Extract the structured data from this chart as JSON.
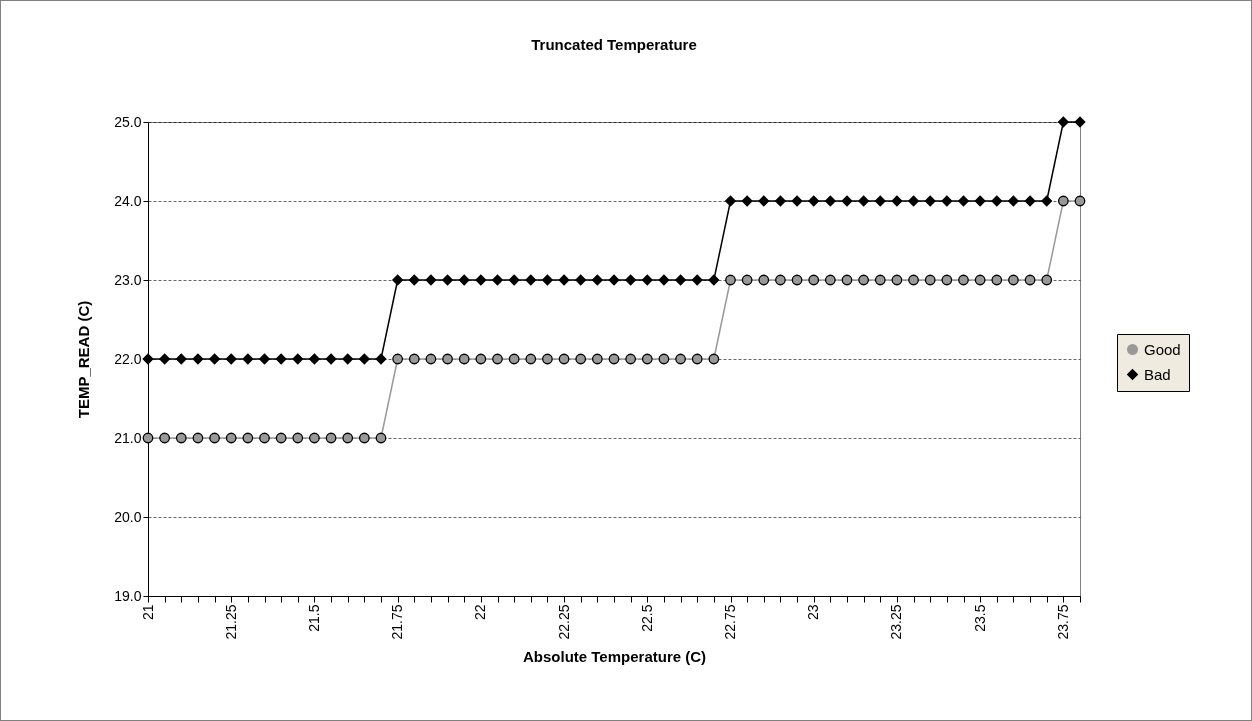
{
  "chart_data": {
    "type": "line",
    "title": "Truncated Temperature",
    "xlabel": "Absolute Temperature (C)",
    "ylabel": "TEMP_READ (C)",
    "categories": [
      "21",
      null,
      null,
      null,
      null,
      "21.25",
      null,
      null,
      null,
      null,
      "21.5",
      null,
      null,
      null,
      null,
      "21.75",
      null,
      null,
      null,
      null,
      "22",
      null,
      null,
      null,
      null,
      "22.25",
      null,
      null,
      null,
      null,
      "22.5",
      null,
      null,
      null,
      null,
      "22.75",
      null,
      null,
      null,
      null,
      "23",
      null,
      null,
      null,
      null,
      "23.25",
      null,
      null,
      null,
      null,
      "23.5",
      null,
      null,
      null,
      null,
      "23.75",
      null
    ],
    "series": [
      {
        "name": "Good",
        "color": "#999999",
        "marker": "circle",
        "values": [
          21,
          21,
          21,
          21,
          21,
          21,
          21,
          21,
          21,
          21,
          21,
          21,
          21,
          21,
          21,
          22,
          22,
          22,
          22,
          22,
          22,
          22,
          22,
          22,
          22,
          22,
          22,
          22,
          22,
          22,
          22,
          22,
          22,
          22,
          22,
          23,
          23,
          23,
          23,
          23,
          23,
          23,
          23,
          23,
          23,
          23,
          23,
          23,
          23,
          23,
          23,
          23,
          23,
          23,
          23,
          24,
          24
        ]
      },
      {
        "name": "Bad",
        "color": "#000000",
        "marker": "diamond",
        "values": [
          22,
          22,
          22,
          22,
          22,
          22,
          22,
          22,
          22,
          22,
          22,
          22,
          22,
          22,
          22,
          23,
          23,
          23,
          23,
          23,
          23,
          23,
          23,
          23,
          23,
          23,
          23,
          23,
          23,
          23,
          23,
          23,
          23,
          23,
          23,
          24,
          24,
          24,
          24,
          24,
          24,
          24,
          24,
          24,
          24,
          24,
          24,
          24,
          24,
          24,
          24,
          24,
          24,
          24,
          24,
          25,
          25
        ]
      }
    ],
    "ylim": [
      19,
      25
    ],
    "yticks": [
      {
        "value": 19,
        "label": "19.0"
      },
      {
        "value": 20,
        "label": "20.0"
      },
      {
        "value": 21,
        "label": "21.0"
      },
      {
        "value": 22,
        "label": "22.0"
      },
      {
        "value": 23,
        "label": "23.0"
      },
      {
        "value": 24,
        "label": "24.0"
      },
      {
        "value": 25,
        "label": "25.0"
      }
    ],
    "grid": "y",
    "legend": "right",
    "line_style": "solid"
  }
}
